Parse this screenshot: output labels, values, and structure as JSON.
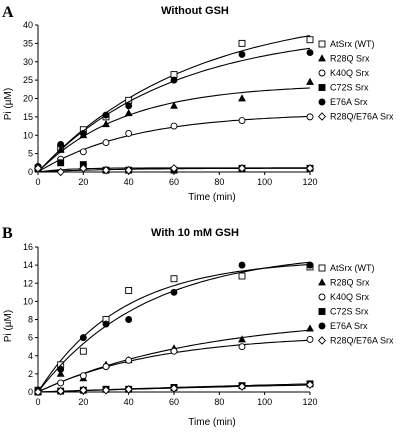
{
  "chart_data": [
    {
      "panel": "A",
      "type": "scatter",
      "title": "Without GSH",
      "xlabel": "Time (min)",
      "ylabel": "Pi (µM)",
      "xlim": [
        0,
        120
      ],
      "ylim": [
        0,
        40
      ],
      "xticks": [
        0,
        20,
        40,
        60,
        80,
        100,
        120
      ],
      "yticks": [
        0,
        5,
        10,
        15,
        20,
        25,
        30,
        35,
        40
      ],
      "legend_position": "right",
      "x": [
        0,
        10,
        20,
        30,
        40,
        60,
        90,
        120
      ],
      "series": [
        {
          "name": "AtSrx (WT)",
          "marker": "square-open",
          "values": [
            1,
            6.5,
            11.5,
            15,
            19.5,
            26.5,
            35,
            36
          ]
        },
        {
          "name": "R28Q Srx",
          "marker": "triangle-filled",
          "values": [
            1,
            6,
            10,
            13,
            16,
            18,
            20,
            24.5
          ]
        },
        {
          "name": "K40Q Srx",
          "marker": "circle-open",
          "values": [
            1,
            3.5,
            5.5,
            8,
            10.5,
            12.5,
            14,
            15
          ]
        },
        {
          "name": "C72S Srx",
          "marker": "square-filled",
          "values": [
            1,
            2.5,
            2,
            0.5,
            0.5,
            0.5,
            1,
            1
          ]
        },
        {
          "name": "E76A Srx",
          "marker": "circle-filled",
          "values": [
            1.5,
            7.5,
            10.5,
            15.5,
            18,
            25,
            32,
            32.5
          ]
        },
        {
          "name": "R28Q/E76A Srx",
          "marker": "diamond-open",
          "values": [
            1,
            0,
            1,
            0.5,
            0.5,
            1,
            1,
            1
          ]
        }
      ]
    },
    {
      "panel": "B",
      "type": "scatter",
      "title": "With 10 mM GSH",
      "xlabel": "Time (min)",
      "ylabel": "Pi (µM)",
      "xlim": [
        0,
        120
      ],
      "ylim": [
        0,
        16
      ],
      "xticks": [
        0,
        20,
        40,
        60,
        80,
        100,
        120
      ],
      "yticks": [
        0,
        2,
        4,
        6,
        8,
        10,
        12,
        14,
        16
      ],
      "legend_position": "right",
      "x": [
        0,
        10,
        20,
        30,
        40,
        60,
        90,
        120
      ],
      "series": [
        {
          "name": "AtSrx (WT)",
          "marker": "square-open",
          "values": [
            0.2,
            3,
            4.5,
            8,
            11.2,
            12.5,
            12.8,
            13.8
          ]
        },
        {
          "name": "R28Q Srx",
          "marker": "triangle-filled",
          "values": [
            0,
            2,
            1.5,
            3,
            3.5,
            4.8,
            5.8,
            7
          ]
        },
        {
          "name": "K40Q Srx",
          "marker": "circle-open",
          "values": [
            0,
            1,
            1.8,
            2.8,
            3.5,
            4.5,
            5,
            5.8
          ]
        },
        {
          "name": "C72S Srx",
          "marker": "square-filled",
          "values": [
            0,
            0.1,
            0.2,
            0.3,
            0.3,
            0.5,
            0.7,
            0.9
          ]
        },
        {
          "name": "E76A Srx",
          "marker": "circle-filled",
          "values": [
            0.2,
            2.5,
            6,
            7.5,
            8,
            11,
            14,
            14
          ]
        },
        {
          "name": "R28Q/E76A Srx",
          "marker": "diamond-open",
          "values": [
            0,
            0.1,
            0.2,
            0.2,
            0.3,
            0.4,
            0.6,
            0.8
          ]
        }
      ]
    }
  ]
}
